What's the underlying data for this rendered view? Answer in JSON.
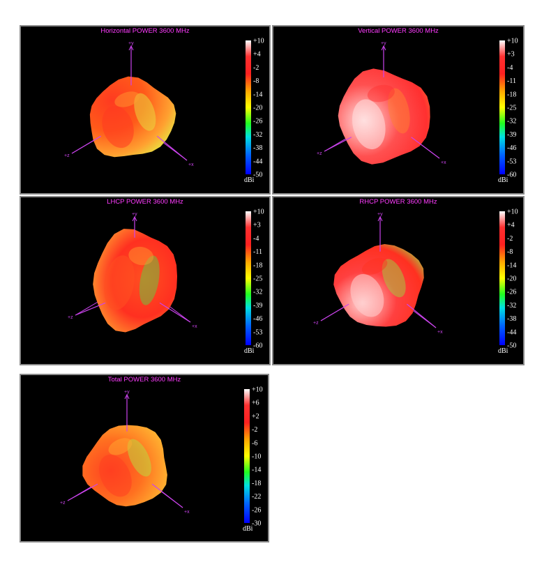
{
  "colors": {
    "panel_background": "#000000",
    "panel_border": "#8a8a8a",
    "title": "#ff3cff",
    "axis": "#cc44ee",
    "tick_text": "#ffffff",
    "scale_stops": [
      "#ffffff",
      "#ff3030",
      "#ff2020",
      "#ffa800",
      "#ffff00",
      "#20ff20",
      "#00e0e0",
      "#0060ff",
      "#0000ff"
    ]
  },
  "chart_data": [
    {
      "type": "3d-radiation-pattern",
      "title": "Horizontal POWER 3600  MHz",
      "axis_labels": {
        "y": "+y",
        "z": "+z",
        "x": "+x"
      },
      "colorbar": {
        "unit": "dBi",
        "max": 10,
        "min": -50,
        "ticks": [
          "+10",
          "+4",
          "-2",
          "-8",
          "-14",
          "-20",
          "-26",
          "-32",
          "-38",
          "-44",
          "-50"
        ]
      },
      "surface_colors": [
        "#ff3a20",
        "#ff5a1a",
        "#ffa030",
        "#e8e040"
      ]
    },
    {
      "type": "3d-radiation-pattern",
      "title": "Vertical POWER 3600  MHz",
      "axis_labels": {
        "y": "+y",
        "z": "+z",
        "x": "+x"
      },
      "colorbar": {
        "unit": "dBi",
        "max": 10,
        "min": -60,
        "ticks": [
          "+10",
          "+3",
          "-4",
          "-11",
          "-18",
          "-25",
          "-32",
          "-39",
          "-46",
          "-53",
          "-60"
        ]
      },
      "surface_colors": [
        "#ffe0e0",
        "#ff5050",
        "#ff3030",
        "#ff8030"
      ]
    },
    {
      "type": "3d-radiation-pattern",
      "title": "LHCP POWER 3600  MHz",
      "axis_labels": {
        "y": "+y",
        "z": "+z",
        "x": "+x"
      },
      "colorbar": {
        "unit": "dBi",
        "max": 10,
        "min": -60,
        "ticks": [
          "+10",
          "+3",
          "-4",
          "-11",
          "-18",
          "-25",
          "-32",
          "-39",
          "-46",
          "-53",
          "-60"
        ]
      },
      "surface_colors": [
        "#ff5020",
        "#ff3020",
        "#ffa030",
        "#60d040"
      ]
    },
    {
      "type": "3d-radiation-pattern",
      "title": "RHCP POWER 3600  MHz",
      "axis_labels": {
        "y": "+y",
        "z": "+z",
        "x": "+x"
      },
      "colorbar": {
        "unit": "dBi",
        "max": 10,
        "min": -50,
        "ticks": [
          "+10",
          "+4",
          "-2",
          "-8",
          "-14",
          "-20",
          "-26",
          "-32",
          "-38",
          "-44",
          "-50"
        ]
      },
      "surface_colors": [
        "#ffd0d0",
        "#ff4040",
        "#ff3020",
        "#a0d040"
      ]
    },
    {
      "type": "3d-radiation-pattern",
      "title": "Total POWER 3600  MHz",
      "axis_labels": {
        "y": "+y",
        "z": "+z",
        "x": "+x"
      },
      "colorbar": {
        "unit": "dBi",
        "max": 10,
        "min": -30,
        "ticks": [
          "+10",
          "+6",
          "+2",
          "-2",
          "-6",
          "-10",
          "-14",
          "-18",
          "-22",
          "-26",
          "-30"
        ]
      },
      "surface_colors": [
        "#ff4020",
        "#ff7020",
        "#ffb030",
        "#b8e040"
      ]
    }
  ]
}
